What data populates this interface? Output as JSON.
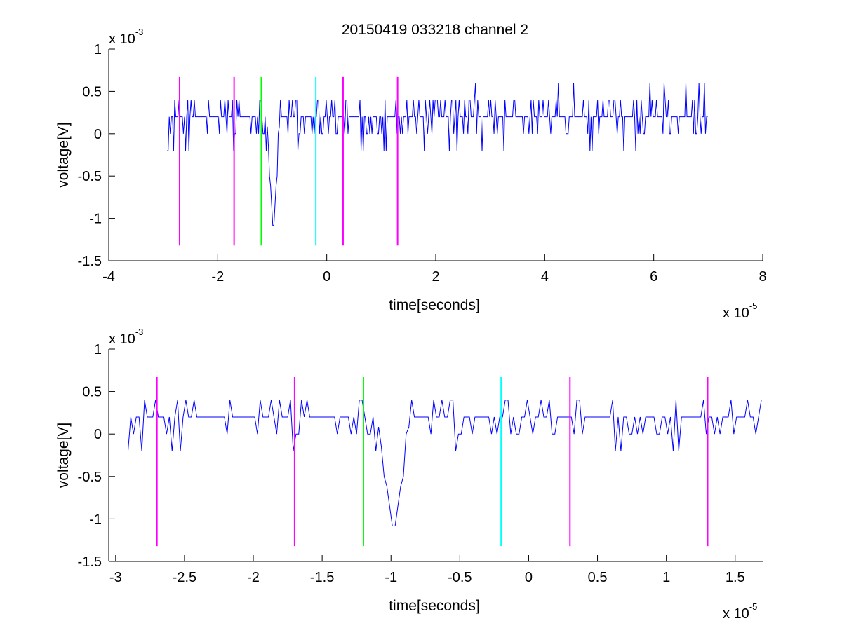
{
  "figure": {
    "title": "20150419 033218 channel 2"
  },
  "chart_data": [
    {
      "type": "line",
      "title": "20150419 033218 channel 2",
      "xlabel": "time[seconds]",
      "ylabel": "voltage[V]",
      "xlim": [
        -4,
        8
      ],
      "ylim": [
        -1.5,
        1
      ],
      "xticks": [
        -4,
        -2,
        0,
        2,
        4,
        6,
        8
      ],
      "xtick_labels": [
        "-4",
        "-2",
        "0",
        "2",
        "4",
        "6",
        "8"
      ],
      "yticks": [
        1,
        0.5,
        0,
        -0.5,
        -1,
        -1.5
      ],
      "ytick_labels": [
        "1",
        "0.5",
        "0",
        "-0.5",
        "-1",
        "-1.5"
      ],
      "x_exponent": {
        "base": "x 10",
        "power": "-5"
      },
      "y_exponent": {
        "base": "x 10",
        "power": "-3"
      },
      "grid": false,
      "signal": {
        "color": "#0000ff",
        "x_start": -2.93,
        "x_end": 7.0,
        "spike": {
          "x": -0.98,
          "y": -1.2
        }
      },
      "markers": [
        {
          "x": -2.7,
          "color": "#ff00ff"
        },
        {
          "x": -1.7,
          "color": "#ff00ff"
        },
        {
          "x": -1.2,
          "color": "#00ff00"
        },
        {
          "x": -0.2,
          "color": "#00ffff"
        },
        {
          "x": 0.3,
          "color": "#ff00ff"
        },
        {
          "x": 1.3,
          "color": "#ff00ff"
        }
      ],
      "marker_range": [
        -1.32,
        0.67
      ]
    },
    {
      "type": "line",
      "title": "",
      "xlabel": "time[seconds]",
      "ylabel": "voltage[V]",
      "xlim": [
        -3.05,
        1.7
      ],
      "ylim": [
        -1.5,
        1
      ],
      "xticks": [
        -3,
        -2.5,
        -2,
        -1.5,
        -1,
        -0.5,
        0,
        0.5,
        1,
        1.5
      ],
      "xtick_labels": [
        "-3",
        "-2.5",
        "-2",
        "-1.5",
        "-1",
        "-0.5",
        "0",
        "0.5",
        "1",
        "1.5"
      ],
      "yticks": [
        1,
        0.5,
        0,
        -0.5,
        -1,
        -1.5
      ],
      "ytick_labels": [
        "1",
        "0.5",
        "0",
        "-0.5",
        "-1",
        "-1.5"
      ],
      "x_exponent": {
        "base": "x 10",
        "power": "-5"
      },
      "y_exponent": {
        "base": "x 10",
        "power": "-3"
      },
      "grid": false,
      "signal": {
        "color": "#0000ff",
        "x_start": -2.93,
        "x_end": 1.7,
        "spike": {
          "x": -0.98,
          "y": -1.2
        }
      },
      "markers": [
        {
          "x": -2.7,
          "color": "#ff00ff"
        },
        {
          "x": -1.7,
          "color": "#ff00ff"
        },
        {
          "x": -1.2,
          "color": "#00ff00"
        },
        {
          "x": -0.2,
          "color": "#00ffff"
        },
        {
          "x": 0.3,
          "color": "#ff00ff"
        },
        {
          "x": 1.3,
          "color": "#ff00ff"
        }
      ],
      "marker_range": [
        -1.32,
        0.67
      ]
    }
  ]
}
